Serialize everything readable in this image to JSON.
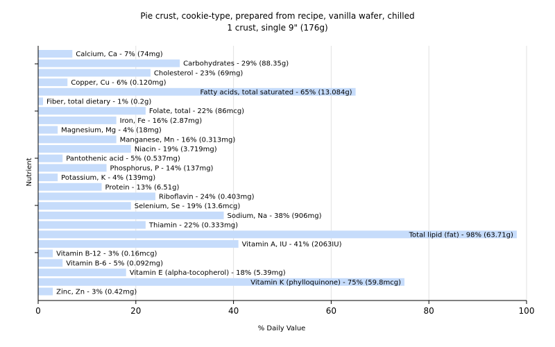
{
  "chart_data": {
    "type": "bar",
    "orientation": "horizontal",
    "title": "Pie crust, cookie-type, prepared from recipe, vanilla wafer, chilled",
    "subtitle": "1 crust, single 9\" (176g)",
    "xlabel": "% Daily Value",
    "ylabel": "Nutrient",
    "xlim": [
      0,
      100
    ],
    "xticks": [
      0,
      20,
      40,
      60,
      80,
      100
    ],
    "grid": "vertical",
    "bar_color": "#c6dcfb",
    "categories": [
      "Calcium, Ca",
      "Carbohydrates",
      "Cholesterol",
      "Copper, Cu",
      "Fatty acids, total saturated",
      "Fiber, total dietary",
      "Folate, total",
      "Iron, Fe",
      "Magnesium, Mg",
      "Manganese, Mn",
      "Niacin",
      "Pantothenic acid",
      "Phosphorus, P",
      "Potassium, K",
      "Protein",
      "Riboflavin",
      "Selenium, Se",
      "Sodium, Na",
      "Thiamin",
      "Total lipid (fat)",
      "Vitamin A, IU",
      "Vitamin B-12",
      "Vitamin B-6",
      "Vitamin E (alpha-tocopherol)",
      "Vitamin K (phylloquinone)",
      "Zinc, Zn"
    ],
    "values": [
      7,
      29,
      23,
      6,
      65,
      1,
      22,
      16,
      4,
      16,
      19,
      5,
      14,
      4,
      13,
      24,
      19,
      38,
      22,
      98,
      41,
      3,
      5,
      18,
      75,
      3
    ],
    "labels": [
      "Calcium, Ca - 7% (74mg)",
      "Carbohydrates - 29% (88.35g)",
      "Cholesterol - 23% (69mg)",
      "Copper, Cu - 6% (0.120mg)",
      "Fatty acids, total saturated - 65% (13.084g)",
      "Fiber, total dietary - 1% (0.2g)",
      "Folate, total - 22% (86mcg)",
      "Iron, Fe - 16% (2.87mg)",
      "Magnesium, Mg - 4% (18mg)",
      "Manganese, Mn - 16% (0.313mg)",
      "Niacin - 19% (3.719mg)",
      "Pantothenic acid - 5% (0.537mg)",
      "Phosphorus, P - 14% (137mg)",
      "Potassium, K - 4% (139mg)",
      "Protein - 13% (6.51g)",
      "Riboflavin - 24% (0.403mg)",
      "Selenium, Se - 19% (13.6mcg)",
      "Sodium, Na - 38% (906mg)",
      "Thiamin - 22% (0.333mg)",
      "Total lipid (fat) - 98% (63.71g)",
      "Vitamin A, IU - 41% (2063IU)",
      "Vitamin B-12 - 3% (0.16mcg)",
      "Vitamin B-6 - 5% (0.092mg)",
      "Vitamin E (alpha-tocopherol) - 18% (5.39mg)",
      "Vitamin K (phylloquinone) - 75% (59.8mcg)",
      "Zinc, Zn - 3% (0.42mg)"
    ]
  }
}
